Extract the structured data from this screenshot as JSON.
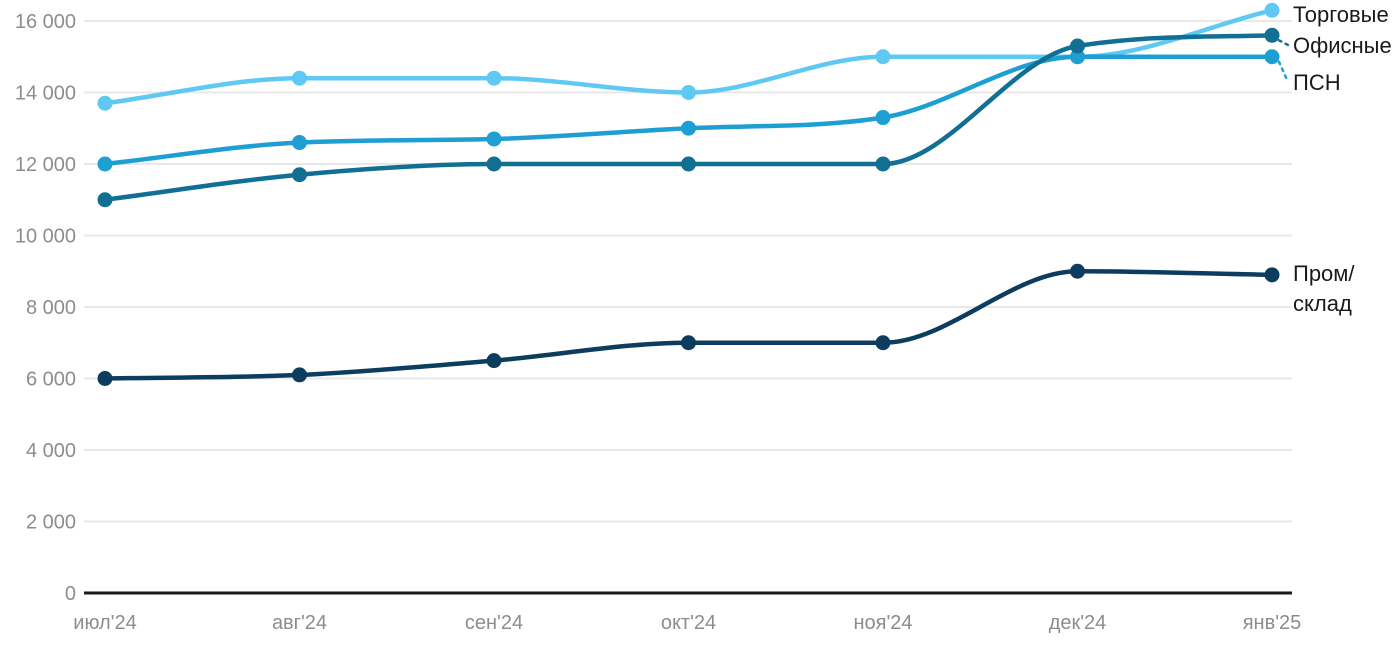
{
  "chart_data": {
    "type": "line",
    "title": "",
    "xlabel": "",
    "ylabel": "",
    "x_labels": [
      "июл'24",
      "авг'24",
      "сен'24",
      "окт'24",
      "ноя'24",
      "дек'24",
      "янв'25"
    ],
    "y_ticks": [
      {
        "value": 0,
        "label": "0"
      },
      {
        "value": 2000,
        "label": "2 000"
      },
      {
        "value": 4000,
        "label": "4 000"
      },
      {
        "value": 6000,
        "label": "6 000"
      },
      {
        "value": 8000,
        "label": "8 000"
      },
      {
        "value": 10000,
        "label": "10 000"
      },
      {
        "value": 12000,
        "label": "12 000"
      },
      {
        "value": 14000,
        "label": "14 000"
      },
      {
        "value": 16000,
        "label": "16 000"
      }
    ],
    "ylim": [
      0,
      16350
    ],
    "grid": "horizontal",
    "legend_position": "line-end-labels-right",
    "series": [
      {
        "id": "torgovye",
        "name": "Торговые",
        "color": "#5FC9F4",
        "values": [
          13700,
          14400,
          14400,
          14000,
          15000,
          15000,
          16300
        ],
        "label_lines": [
          "Торговые"
        ],
        "label_y": 14,
        "connector": false
      },
      {
        "id": "ofisnye",
        "name": "Офисные",
        "color": "#106F92",
        "values": [
          11000,
          11700,
          12000,
          12000,
          12000,
          15300,
          15600
        ],
        "label_lines": [
          "Офисные"
        ],
        "label_y": 45,
        "connector": true
      },
      {
        "id": "psn",
        "name": "ПСН",
        "color": "#1E9FD4",
        "values": [
          12000,
          12600,
          12700,
          13000,
          13300,
          15000,
          15000
        ],
        "label_lines": [
          "ПСН"
        ],
        "label_y": 82,
        "connector": true
      },
      {
        "id": "prom_sklad",
        "name": "Пром/склад",
        "color": "#0D3D5E",
        "values": [
          6000,
          6100,
          6500,
          7000,
          7000,
          9000,
          8900
        ],
        "label_lines": [
          "Пром/",
          "склад"
        ],
        "label_y": 273,
        "connector": false
      }
    ],
    "draw_order": [
      "torgovye",
      "psn",
      "ofisnye",
      "prom_sklad"
    ]
  },
  "styles": {
    "background": "#FFFFFF",
    "grid_color": "#E8E8E8",
    "axis_color": "#1A1A1A",
    "tick_label_color": "#8D8D8D",
    "series_label_color": "#1A1A1A"
  }
}
